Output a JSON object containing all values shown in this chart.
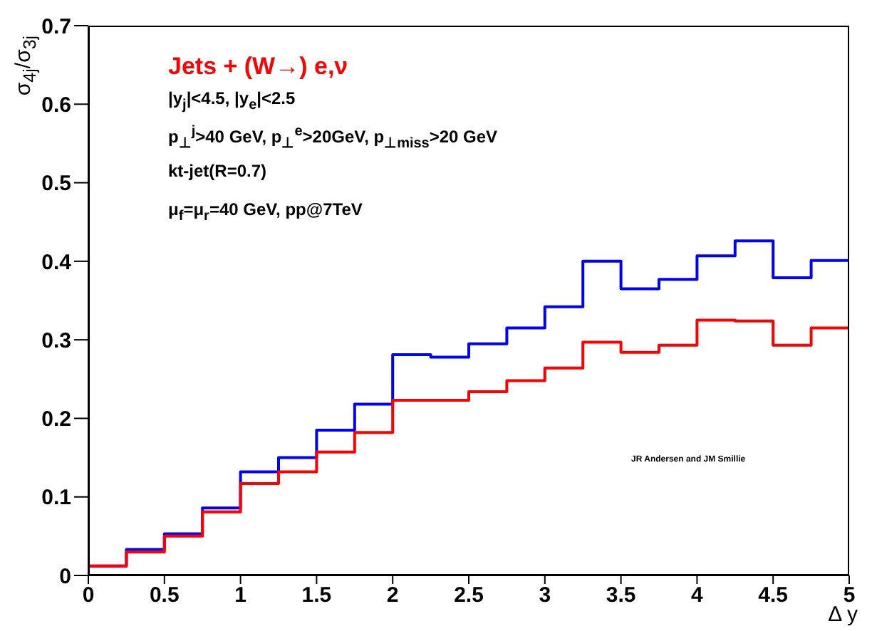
{
  "chart_data": {
    "type": "histogram",
    "xlabel": "Δ y",
    "ylabel": "σ$_{4j}$/σ$_{3j}$",
    "bins": [
      0,
      0.25,
      0.5,
      0.75,
      1,
      1.25,
      1.5,
      1.75,
      2,
      2.25,
      2.5,
      2.75,
      3,
      3.25,
      3.5,
      3.75,
      4,
      4.25,
      4.5,
      4.75,
      5
    ],
    "series": [
      {
        "color": "#0000ff",
        "values": [
          0.012,
          0.033,
          0.053,
          0.086,
          0.132,
          0.15,
          0.185,
          0.218,
          0.281,
          0.278,
          0.295,
          0.315,
          0.342,
          0.4,
          0.365,
          0.377,
          0.407,
          0.426,
          0.379,
          0.401
        ]
      },
      {
        "color": "#ff0000",
        "values": [
          0.012,
          0.03,
          0.05,
          0.081,
          0.117,
          0.132,
          0.157,
          0.182,
          0.223,
          0.223,
          0.234,
          0.248,
          0.264,
          0.297,
          0.284,
          0.293,
          0.325,
          0.324,
          0.293,
          0.315
        ]
      }
    ],
    "xlim": [
      0,
      5
    ],
    "xticks": [
      0,
      0.5,
      1,
      1.5,
      2,
      2.5,
      3,
      3.5,
      4,
      4.5,
      5
    ],
    "ylim": [
      0,
      0.7
    ],
    "yticks": [
      0,
      0.1,
      0.2,
      0.3,
      0.4,
      0.5,
      0.6,
      0.7
    ],
    "grid": false,
    "annotations": [
      "Jets + (W→) e,ν",
      "|y$_{j}$|<4.5, |y$_{e}$|<2.5",
      "p$_{⊥}$$^{j}$>40 GeV, p$_{⊥}$$^{e}$>20GeV, p$_{⊥miss}$>20 GeV",
      "kt-jet(R=0.7)",
      "μ$_{f}$=μ$_{r}$=40 GeV, pp@7TeV",
      "JR Andersen and JM Smillie"
    ]
  }
}
